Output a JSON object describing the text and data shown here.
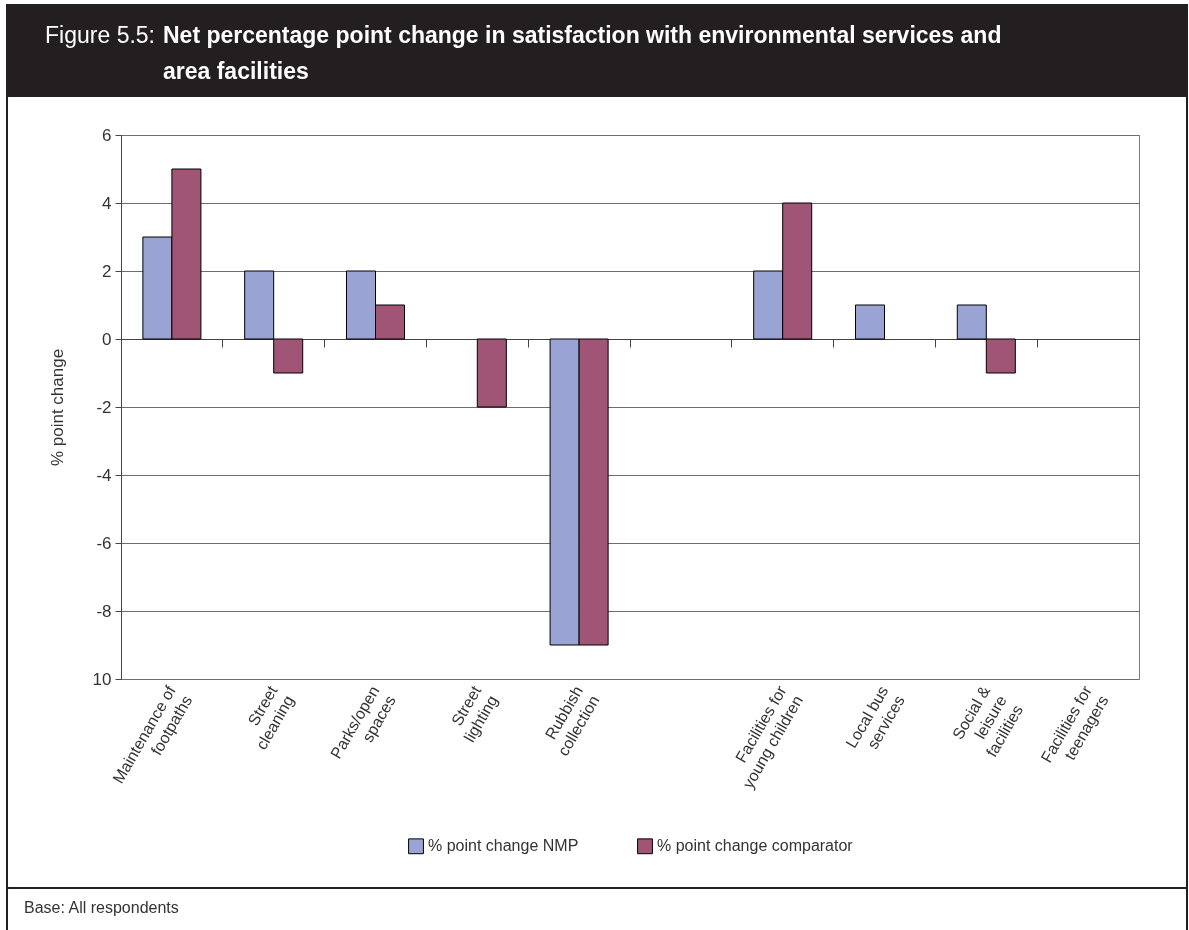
{
  "chart_data": {
    "type": "bar",
    "title": "Figure 5.5: Net percentage point change in satisfaction with environmental services and area facilities",
    "ylabel": "% point change",
    "categories": [
      "Maintenance of footpaths",
      "Street cleaning",
      "Parks/open spaces",
      "Street lighting",
      "Rubbish collection",
      null,
      "Facilities for young children",
      "Local bus services",
      "Social & leisure facilities",
      "Facilities for teenagers"
    ],
    "series": [
      {
        "name": "% point change NMP",
        "color": "#99a4d4",
        "values": [
          3,
          2,
          2,
          null,
          -9,
          null,
          2,
          1,
          1,
          null
        ]
      },
      {
        "name": "% point change comparator",
        "color": "#a05577",
        "values": [
          5,
          -1,
          1,
          -2,
          -9,
          null,
          4,
          null,
          -1,
          null
        ]
      }
    ],
    "ylim": [
      -10,
      6
    ],
    "yticks": [
      {
        "value": -10,
        "label": "10"
      },
      -8,
      -6,
      -4,
      -2,
      0,
      2,
      4,
      6
    ],
    "grid": "y",
    "legend": "bottom",
    "annotations": [
      "Base: All respondents"
    ]
  }
}
